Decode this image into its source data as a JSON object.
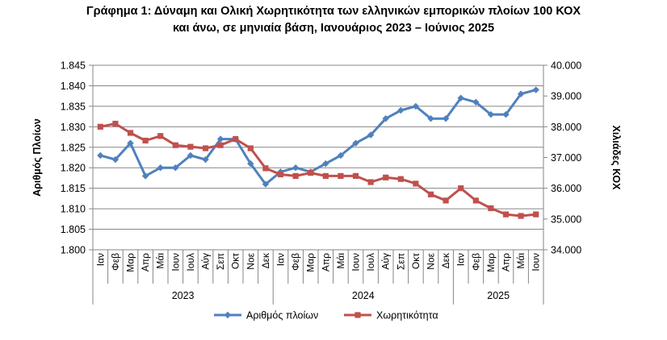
{
  "chart_data": {
    "type": "line",
    "title_line1": "Γράφημα 1: Δύναμη και Ολική Χωρητικότητα των ελληνικών εμπορικών πλοίων 100 ΚΟΧ",
    "title_line2": "και άνω, σε μηνιαία βάση, Ιανουάριος 2023 – Ιούνιος 2025",
    "ylabel_left": "Αριθμός Πλοίων",
    "ylabel_right": "Χιλιάδες ΚΟΧ",
    "ylim_left": [
      1800,
      1845
    ],
    "ylim_right": [
      34000,
      40000
    ],
    "yticks_left": [
      "1.800",
      "1.805",
      "1.810",
      "1.815",
      "1.820",
      "1.825",
      "1.830",
      "1.835",
      "1.840",
      "1.845"
    ],
    "yticks_right": [
      "34.000",
      "35.000",
      "36.000",
      "37.000",
      "38.000",
      "39.000",
      "40.000"
    ],
    "months": [
      "Ιαν",
      "Φεβ",
      "Μαρ",
      "Απρ",
      "Μάι",
      "Ιουν",
      "Ιουλ",
      "Αύγ",
      "Σεπ",
      "Οκτ",
      "Νοε",
      "Δεκ",
      "Ιαν",
      "Φεβ",
      "Μαρ",
      "Απρ",
      "Μάι",
      "Ιουν",
      "Ιουλ",
      "Αύγ",
      "Σεπ",
      "Οκτ",
      "Νοε",
      "Δεκ",
      "Ιαν",
      "Φεβ",
      "Μαρ",
      "Απρ",
      "Μάι",
      "Ιουν"
    ],
    "years": [
      {
        "label": "2023",
        "count": 12
      },
      {
        "label": "2024",
        "count": 12
      },
      {
        "label": "2025",
        "count": 6
      }
    ],
    "grid": true,
    "legend_position": "bottom",
    "series": [
      {
        "name": "Αριθμός πλοίων",
        "axis": "left",
        "color": "#4f81bd",
        "marker": "diamond",
        "values": [
          1823,
          1822,
          1826,
          1818,
          1820,
          1820,
          1823,
          1822,
          1827,
          1827,
          1821,
          1816,
          1819,
          1820,
          1819,
          1821,
          1823,
          1826,
          1828,
          1832,
          1834,
          1835,
          1832,
          1832,
          1837,
          1836,
          1833,
          1833,
          1838,
          1839
        ]
      },
      {
        "name": "Χωρητικότητα",
        "axis": "right",
        "color": "#c0504d",
        "marker": "square",
        "values": [
          38000,
          38100,
          37800,
          37550,
          37700,
          37400,
          37350,
          37300,
          37400,
          37600,
          37300,
          36650,
          36450,
          36400,
          36500,
          36400,
          36400,
          36400,
          36200,
          36350,
          36300,
          36150,
          35800,
          35600,
          36000,
          35600,
          35350,
          35150,
          35100,
          35150
        ]
      }
    ]
  }
}
